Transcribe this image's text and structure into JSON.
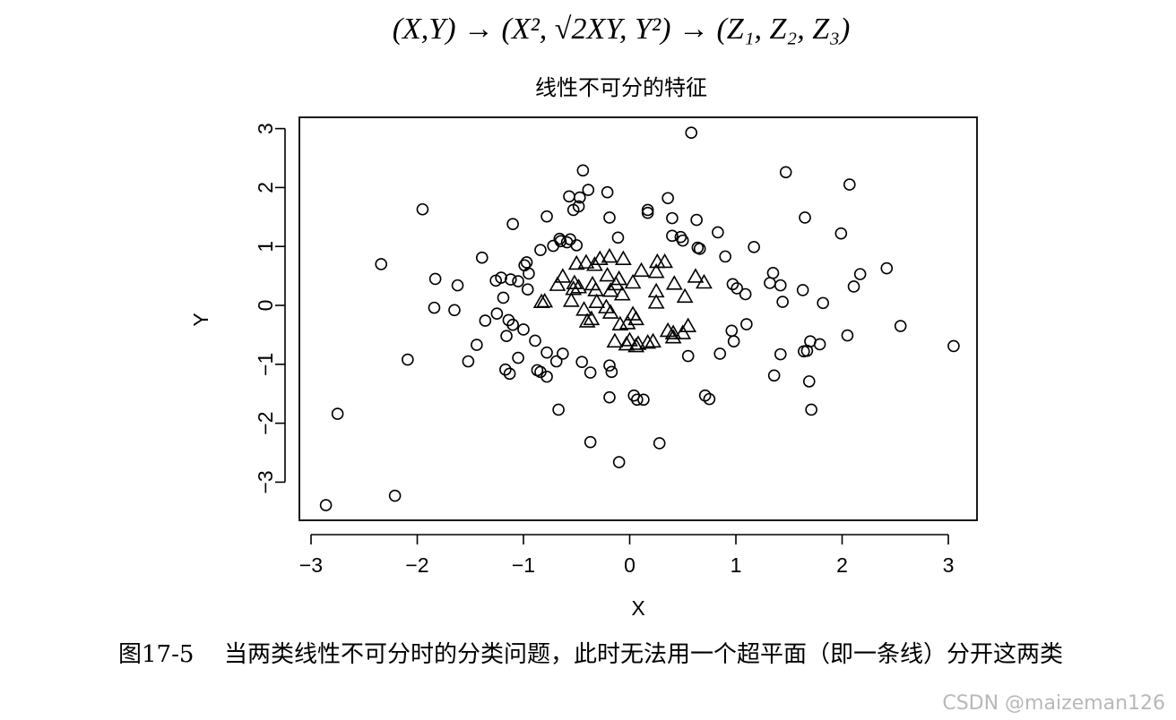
{
  "formula": "(X,Y) → (X², √2XY, Y²) → (Z₁, Z₂, Z₃)",
  "caption": {
    "number": "图17-5",
    "text": "当两类线性不可分时的分类问题，此时无法用一个超平面（即一条线）分开这两类"
  },
  "watermark": "CSDN @maizeman126",
  "chart_data": {
    "type": "scatter",
    "title": "线性不可分的特征",
    "xlabel": "X",
    "ylabel": "Y",
    "xlim": [
      -3.1,
      3.3
    ],
    "ylim": [
      -3.6,
      3.15
    ],
    "xticks": [
      -3,
      -2,
      -1,
      0,
      1,
      2,
      3
    ],
    "yticks": [
      -3,
      -2,
      -1,
      0,
      1,
      2,
      3
    ],
    "grid": false,
    "legend": "none",
    "series": [
      {
        "marker": "circle",
        "points": [
          [
            0.58,
            2.93
          ],
          [
            -0.44,
            2.29
          ],
          [
            1.47,
            2.26
          ],
          [
            2.07,
            2.05
          ],
          [
            -0.39,
            1.96
          ],
          [
            -0.21,
            1.92
          ],
          [
            -0.57,
            1.85
          ],
          [
            -0.47,
            1.83
          ],
          [
            0.36,
            1.82
          ],
          [
            -0.48,
            1.68
          ],
          [
            -0.53,
            1.62
          ],
          [
            -1.95,
            1.63
          ],
          [
            0.17,
            1.62
          ],
          [
            0.17,
            1.57
          ],
          [
            -0.78,
            1.51
          ],
          [
            -0.19,
            1.49
          ],
          [
            0.4,
            1.48
          ],
          [
            0.63,
            1.45
          ],
          [
            1.65,
            1.49
          ],
          [
            -1.1,
            1.38
          ],
          [
            0.83,
            1.24
          ],
          [
            1.99,
            1.22
          ],
          [
            -0.11,
            1.15
          ],
          [
            0.4,
            1.18
          ],
          [
            0.48,
            1.16
          ],
          [
            0.5,
            1.1
          ],
          [
            -0.66,
            1.13
          ],
          [
            -0.65,
            1.09
          ],
          [
            -0.56,
            1.12
          ],
          [
            -0.59,
            1.07
          ],
          [
            -0.5,
            1.02
          ],
          [
            -0.72,
            1.01
          ],
          [
            0.64,
            0.98
          ],
          [
            0.66,
            0.96
          ],
          [
            1.17,
            0.99
          ],
          [
            -0.84,
            0.94
          ],
          [
            0.9,
            0.83
          ],
          [
            -1.39,
            0.81
          ],
          [
            -0.97,
            0.73
          ],
          [
            -0.99,
            0.68
          ],
          [
            -2.34,
            0.7
          ],
          [
            2.42,
            0.63
          ],
          [
            -0.95,
            0.54
          ],
          [
            2.17,
            0.53
          ],
          [
            1.35,
            0.55
          ],
          [
            -1.21,
            0.47
          ],
          [
            -1.12,
            0.44
          ],
          [
            -1.05,
            0.41
          ],
          [
            -1.83,
            0.45
          ],
          [
            -1.26,
            0.42
          ],
          [
            1.32,
            0.38
          ],
          [
            0.97,
            0.36
          ],
          [
            1.01,
            0.29
          ],
          [
            -1.62,
            0.34
          ],
          [
            1.09,
            0.19
          ],
          [
            1.42,
            0.34
          ],
          [
            2.11,
            0.32
          ],
          [
            -0.96,
            0.27
          ],
          [
            1.63,
            0.26
          ],
          [
            -1.19,
            0.13
          ],
          [
            1.44,
            0.06
          ],
          [
            1.82,
            0.04
          ],
          [
            -1.84,
            -0.04
          ],
          [
            -1.65,
            -0.08
          ],
          [
            -1.25,
            -0.14
          ],
          [
            -1.36,
            -0.26
          ],
          [
            -1.14,
            -0.25
          ],
          [
            -1.1,
            -0.33
          ],
          [
            1.1,
            -0.32
          ],
          [
            -1.0,
            -0.41
          ],
          [
            2.55,
            -0.35
          ],
          [
            0.96,
            -0.43
          ],
          [
            -1.16,
            -0.52
          ],
          [
            2.05,
            -0.51
          ],
          [
            -0.89,
            -0.6
          ],
          [
            0.98,
            -0.61
          ],
          [
            1.7,
            -0.61
          ],
          [
            -1.44,
            -0.67
          ],
          [
            1.79,
            -0.66
          ],
          [
            3.05,
            -0.69
          ],
          [
            -0.78,
            -0.8
          ],
          [
            -0.63,
            -0.82
          ],
          [
            1.64,
            -0.78
          ],
          [
            1.67,
            -0.77
          ],
          [
            1.42,
            -0.83
          ],
          [
            0.55,
            -0.86
          ],
          [
            0.85,
            -0.82
          ],
          [
            -1.05,
            -0.89
          ],
          [
            -2.09,
            -0.92
          ],
          [
            -1.52,
            -0.95
          ],
          [
            -0.69,
            -0.95
          ],
          [
            -0.45,
            -0.96
          ],
          [
            -0.19,
            -1.02
          ],
          [
            -0.87,
            -1.1
          ],
          [
            -1.17,
            -1.09
          ],
          [
            -0.84,
            -1.13
          ],
          [
            -1.13,
            -1.16
          ],
          [
            -0.37,
            -1.14
          ],
          [
            -0.17,
            -1.13
          ],
          [
            -0.78,
            -1.21
          ],
          [
            1.36,
            -1.19
          ],
          [
            1.69,
            -1.29
          ],
          [
            0.71,
            -1.53
          ],
          [
            0.75,
            -1.59
          ],
          [
            0.04,
            -1.53
          ],
          [
            0.07,
            -1.6
          ],
          [
            0.13,
            -1.6
          ],
          [
            -0.19,
            -1.56
          ],
          [
            -0.67,
            -1.77
          ],
          [
            1.71,
            -1.77
          ],
          [
            -2.75,
            -1.84
          ],
          [
            -0.37,
            -2.32
          ],
          [
            0.28,
            -2.34
          ],
          [
            -0.1,
            -2.66
          ],
          [
            -2.21,
            -3.23
          ],
          [
            -2.86,
            -3.39
          ]
        ]
      },
      {
        "marker": "triangle",
        "points": [
          [
            -0.5,
            0.7
          ],
          [
            -0.41,
            0.72
          ],
          [
            -0.28,
            0.78
          ],
          [
            -0.19,
            0.82
          ],
          [
            -0.06,
            0.78
          ],
          [
            0.26,
            0.73
          ],
          [
            0.33,
            0.73
          ],
          [
            -0.33,
            0.68
          ],
          [
            0.11,
            0.58
          ],
          [
            0.25,
            0.56
          ],
          [
            -0.63,
            0.48
          ],
          [
            -0.21,
            0.5
          ],
          [
            -0.1,
            0.44
          ],
          [
            0.62,
            0.48
          ],
          [
            0.7,
            0.38
          ],
          [
            -0.68,
            0.34
          ],
          [
            -0.52,
            0.37
          ],
          [
            -0.35,
            0.35
          ],
          [
            -0.13,
            0.35
          ],
          [
            0.03,
            0.38
          ],
          [
            0.42,
            0.36
          ],
          [
            -0.53,
            0.27
          ],
          [
            -0.48,
            0.3
          ],
          [
            -0.32,
            0.25
          ],
          [
            -0.18,
            0.24
          ],
          [
            0.25,
            0.23
          ],
          [
            -0.07,
            0.18
          ],
          [
            0.52,
            0.14
          ],
          [
            -0.83,
            0.05
          ],
          [
            -0.8,
            0.06
          ],
          [
            -0.55,
            0.07
          ],
          [
            -0.31,
            0.05
          ],
          [
            -0.22,
            -0.04
          ],
          [
            -0.43,
            -0.08
          ],
          [
            -0.18,
            -0.13
          ],
          [
            0.03,
            -0.16
          ],
          [
            -0.36,
            -0.24
          ],
          [
            -0.4,
            -0.28
          ],
          [
            0.06,
            -0.24
          ],
          [
            -0.02,
            -0.31
          ],
          [
            -0.09,
            -0.33
          ],
          [
            0.55,
            -0.36
          ],
          [
            0.36,
            -0.44
          ],
          [
            0.41,
            -0.48
          ],
          [
            0.5,
            -0.48
          ],
          [
            -0.14,
            -0.62
          ],
          [
            0.0,
            -0.6
          ],
          [
            0.22,
            -0.62
          ],
          [
            0.17,
            -0.64
          ],
          [
            -0.03,
            -0.67
          ],
          [
            0.06,
            -0.7
          ],
          [
            0.08,
            -0.66
          ],
          [
            0.41,
            -0.55
          ],
          [
            0.25,
            0.04
          ]
        ]
      }
    ]
  }
}
